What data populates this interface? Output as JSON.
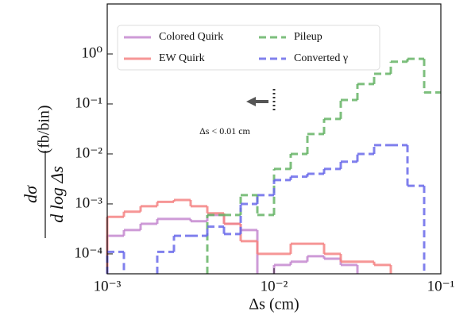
{
  "chart_data": {
    "type": "histogram",
    "xlabel": "Δs (cm)",
    "ylabel": {
      "numerator": "dσ",
      "denominator": "d log Δs",
      "unit": "(fb/bin)"
    },
    "annotation": "Δs < 0.01 cm",
    "xscale": "log",
    "yscale": "log",
    "xlim": [
      0.001,
      0.1
    ],
    "ylim": [
      4e-05,
      10
    ],
    "xticks": [
      {
        "value": 0.001,
        "label": "10⁻³"
      },
      {
        "value": 0.01,
        "label": "10⁻²"
      },
      {
        "value": 0.1,
        "label": "10⁻¹"
      }
    ],
    "yticks": [
      {
        "value": 0.0001,
        "label": "10⁻⁴"
      },
      {
        "value": 0.001,
        "label": "10⁻³"
      },
      {
        "value": 0.01,
        "label": "10⁻²"
      },
      {
        "value": 0.1,
        "label": "10⁻¹"
      },
      {
        "value": 1,
        "label": "10⁰"
      }
    ],
    "legend": "upper left",
    "bins": [
      0.001,
      0.001259,
      0.001585,
      0.001995,
      0.002512,
      0.003162,
      0.003981,
      0.005012,
      0.00631,
      0.007943,
      0.01,
      0.01259,
      0.01585,
      0.01995,
      0.02512,
      0.03162,
      0.03981,
      0.05012,
      0.0631,
      0.07943,
      0.1
    ],
    "series": [
      {
        "name": "Colored Quirk",
        "color": "#c58ad0",
        "linestyle": "solid",
        "values": [
          0.00023,
          0.0003,
          0.0004,
          0.0005,
          0.0005,
          0.00045,
          0.0006,
          0.0004,
          0.0003,
          null,
          6e-05,
          7e-05,
          9e-05,
          8e-05,
          6e-05,
          null,
          null,
          null,
          null,
          null
        ]
      },
      {
        "name": "EW Quirk",
        "color": "#f48484",
        "linestyle": "solid",
        "values": [
          0.00055,
          0.0007,
          0.0009,
          0.0011,
          0.0012,
          0.0009,
          0.00065,
          0.0004,
          0.00018,
          0.0001,
          0.0001,
          0.00016,
          0.00016,
          0.0001,
          7e-05,
          7e-05,
          6e-05,
          null,
          null,
          null
        ]
      },
      {
        "name": "Pileup",
        "color": "#66b466",
        "linestyle": "dashed",
        "values": [
          null,
          null,
          null,
          null,
          null,
          null,
          0.0006,
          0.0006,
          0.0015,
          0.0006,
          0.005,
          0.01,
          0.025,
          0.05,
          0.12,
          0.25,
          0.4,
          0.7,
          0.8,
          0.17
        ]
      },
      {
        "name": "Converted γ",
        "color": "#6a6aea",
        "linestyle": "dashed",
        "values": [
          0.00011,
          null,
          null,
          0.00011,
          0.00023,
          0.00023,
          0.00035,
          0.00025,
          0.001,
          0.0015,
          0.003,
          0.0035,
          0.004,
          0.005,
          0.007,
          0.01,
          0.015,
          0.015,
          0.0023,
          null
        ]
      }
    ]
  }
}
